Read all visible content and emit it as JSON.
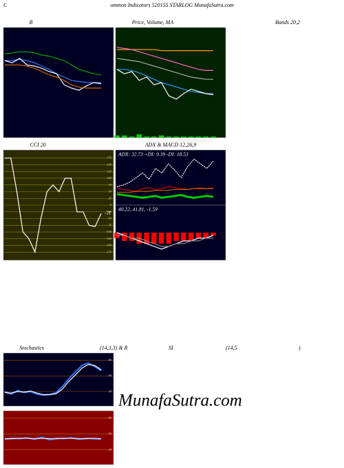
{
  "header": {
    "c": "C",
    "title": "ommon  Indicators 520155 STARLOG MunafaSutra.com"
  },
  "bands_label": "Bands 20,2",
  "lower_header": [
    "Stochastics",
    "(14,3,3) & R",
    "SI",
    "(14,5",
    ")"
  ],
  "watermark": "MunafaSutra.com",
  "chart_data": [
    {
      "type": "line",
      "title": "B",
      "bg": "#000022",
      "ylim": [
        0,
        100
      ],
      "series": [
        {
          "color": "#00aa00",
          "values": [
            76,
            77,
            78,
            78,
            77,
            75,
            74,
            72,
            70,
            66,
            62,
            60,
            58,
            57
          ]
        },
        {
          "color": "#3377ff",
          "values": [
            70,
            70,
            71,
            70,
            68,
            65,
            62,
            58,
            55,
            52,
            51,
            50,
            50,
            50
          ]
        },
        {
          "color": "#ffffff",
          "values": [
            70,
            68,
            72,
            66,
            65,
            63,
            60,
            58,
            48,
            45,
            43,
            47,
            50,
            49
          ]
        },
        {
          "color": "#cc6600",
          "values": [
            66,
            66,
            66,
            65,
            63,
            60,
            57,
            55,
            52,
            48,
            46,
            45,
            45,
            45
          ]
        }
      ]
    },
    {
      "type": "line",
      "title": "Price, Volume, MA",
      "bg": "#002200",
      "ylim": [
        0,
        100
      ],
      "series": [
        {
          "color": "#ff9900",
          "values": [
            80,
            80,
            80,
            80,
            80,
            80,
            79,
            79,
            79,
            79,
            79,
            79,
            79,
            79
          ]
        },
        {
          "color": "#ff66cc",
          "values": [
            82,
            81,
            80,
            78,
            76,
            74,
            72,
            70,
            68,
            66,
            64,
            62,
            61,
            61
          ]
        },
        {
          "color": "#aaaaaa",
          "values": [
            72,
            71,
            70,
            69,
            67,
            65,
            63,
            61,
            59,
            57,
            55,
            54,
            53,
            53
          ]
        },
        {
          "color": "#3399ff",
          "values": [
            62,
            62,
            61,
            59,
            56,
            53,
            50,
            48,
            46,
            44,
            42,
            41,
            40,
            40
          ]
        },
        {
          "color": "#ffffff",
          "values": [
            62,
            58,
            60,
            52,
            55,
            48,
            50,
            38,
            35,
            40,
            44,
            42,
            40,
            39
          ]
        },
        {
          "color": "#00cc00",
          "kind": "bar",
          "values": [
            2,
            2,
            1,
            3,
            1,
            1,
            2,
            1,
            1,
            1,
            1,
            1,
            1,
            1
          ]
        }
      ]
    },
    {
      "type": "line",
      "title": "CCI 20",
      "bg": "#2b2b00",
      "grid": true,
      "grid_color": "#8a8a00",
      "ylim": [
        -205,
        205
      ],
      "yticks": [
        175,
        150,
        125,
        100,
        75,
        50,
        25,
        0,
        -25,
        -50,
        -75,
        -100,
        -125,
        -150,
        -175
      ],
      "series": [
        {
          "color": "#ffffff",
          "values": [
            175,
            175,
            50,
            -100,
            -125,
            -175,
            -50,
            50,
            75,
            50,
            100,
            100,
            -25,
            -25,
            -75,
            -80,
            -31
          ],
          "label_last": true
        }
      ]
    },
    {
      "type": "line",
      "title": "ADX  & MACD 12,26,9",
      "annotation": "ADX: 32.73 +DI: 9.39 -DI: 18.53",
      "bg": "#000022",
      "ylim": [
        0,
        60
      ],
      "series": [
        {
          "color": "#ffffff",
          "dashed": true,
          "values": [
            20,
            22,
            25,
            30,
            35,
            28,
            40,
            35,
            45,
            38,
            30,
            42,
            50,
            45,
            40,
            48
          ]
        },
        {
          "color": "#00cc00",
          "width": 3,
          "values": [
            12,
            11,
            10,
            9,
            8,
            9,
            10,
            8,
            9,
            10,
            11,
            9,
            8,
            9,
            10,
            9
          ]
        },
        {
          "color": "#cc0000",
          "values": [
            18,
            17,
            16,
            15,
            18,
            19,
            17,
            18,
            20,
            19,
            18,
            17,
            18,
            19,
            18,
            19
          ]
        },
        {
          "color": "#cc6600",
          "values": [
            14,
            14,
            14,
            15,
            15,
            15,
            16,
            16,
            16,
            17,
            17,
            17,
            18,
            18,
            18,
            18
          ]
        }
      ]
    },
    {
      "type": "line",
      "annotation": "40.22, 41.81, -1.59",
      "bg": "#000022",
      "ylim": [
        -10,
        10
      ],
      "series": [
        {
          "color": "#ff0000",
          "kind": "bar",
          "values": [
            -2,
            -3,
            -3,
            -4,
            -4,
            -4,
            -4,
            -4,
            -3,
            -3,
            -3,
            -2,
            -2,
            -1
          ]
        },
        {
          "color": "#ffffff",
          "values": [
            0,
            -1,
            -2,
            -3,
            -4,
            -5,
            -6,
            -5,
            -4,
            -3,
            -3,
            -2,
            -2,
            -1
          ]
        },
        {
          "color": "#888888",
          "values": [
            -1,
            -1,
            -2,
            -2,
            -3,
            -4,
            -5,
            -5,
            -4,
            -4,
            -3,
            -3,
            -2,
            -2
          ]
        }
      ]
    },
    {
      "type": "line",
      "bg": "#000022",
      "grid": true,
      "grid_color": "#aa5500",
      "ylim": [
        -8,
        94
      ],
      "yticks": [
        80,
        50,
        20
      ],
      "series": [
        {
          "color": "#3377ff",
          "width": 2,
          "values": [
            20,
            15,
            22,
            18,
            20,
            15,
            13,
            14,
            18,
            30,
            45,
            58,
            70,
            75,
            68,
            60
          ]
        },
        {
          "color": "#ffffff",
          "values": [
            18,
            17,
            20,
            19,
            21,
            17,
            14,
            14,
            16,
            25,
            40,
            52,
            65,
            72,
            70,
            62
          ]
        }
      ]
    },
    {
      "type": "line",
      "bg": "#880000",
      "grid": true,
      "grid_color": "#cc6600",
      "ylim": [
        -8,
        94
      ],
      "yticks": [
        80,
        50,
        20
      ],
      "series": [
        {
          "color": "#3377ff",
          "width": 2,
          "values": [
            40,
            42,
            41,
            43,
            40,
            44,
            39,
            42,
            41,
            43,
            40,
            42,
            41,
            40
          ]
        },
        {
          "color": "#ffffff",
          "values": [
            41,
            41,
            42,
            42,
            41,
            42,
            41,
            41,
            42,
            42,
            41,
            41,
            42,
            41
          ]
        }
      ]
    }
  ]
}
